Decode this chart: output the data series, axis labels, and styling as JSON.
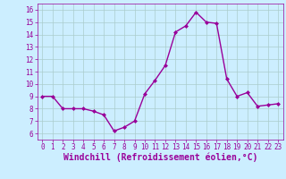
{
  "x": [
    0,
    1,
    2,
    3,
    4,
    5,
    6,
    7,
    8,
    9,
    10,
    11,
    12,
    13,
    14,
    15,
    16,
    17,
    18,
    19,
    20,
    21,
    22,
    23
  ],
  "y": [
    9.0,
    9.0,
    8.0,
    8.0,
    8.0,
    7.8,
    7.5,
    6.2,
    6.5,
    7.0,
    9.2,
    10.3,
    11.5,
    14.2,
    14.7,
    15.8,
    15.0,
    14.9,
    10.4,
    9.0,
    9.3,
    8.2,
    8.3,
    8.4
  ],
  "xlim": [
    -0.5,
    23.5
  ],
  "ylim": [
    5.5,
    16.5
  ],
  "yticks": [
    6,
    7,
    8,
    9,
    10,
    11,
    12,
    13,
    14,
    15,
    16
  ],
  "xticks": [
    0,
    1,
    2,
    3,
    4,
    5,
    6,
    7,
    8,
    9,
    10,
    11,
    12,
    13,
    14,
    15,
    16,
    17,
    18,
    19,
    20,
    21,
    22,
    23
  ],
  "xlabel": "Windchill (Refroidissement éolien,°C)",
  "line_color": "#990099",
  "marker": "D",
  "marker_size": 2.0,
  "bg_color": "#cceeff",
  "grid_color": "#aacccc",
  "line_width": 1.0,
  "tick_fontsize": 5.5,
  "xlabel_fontsize": 7.0
}
